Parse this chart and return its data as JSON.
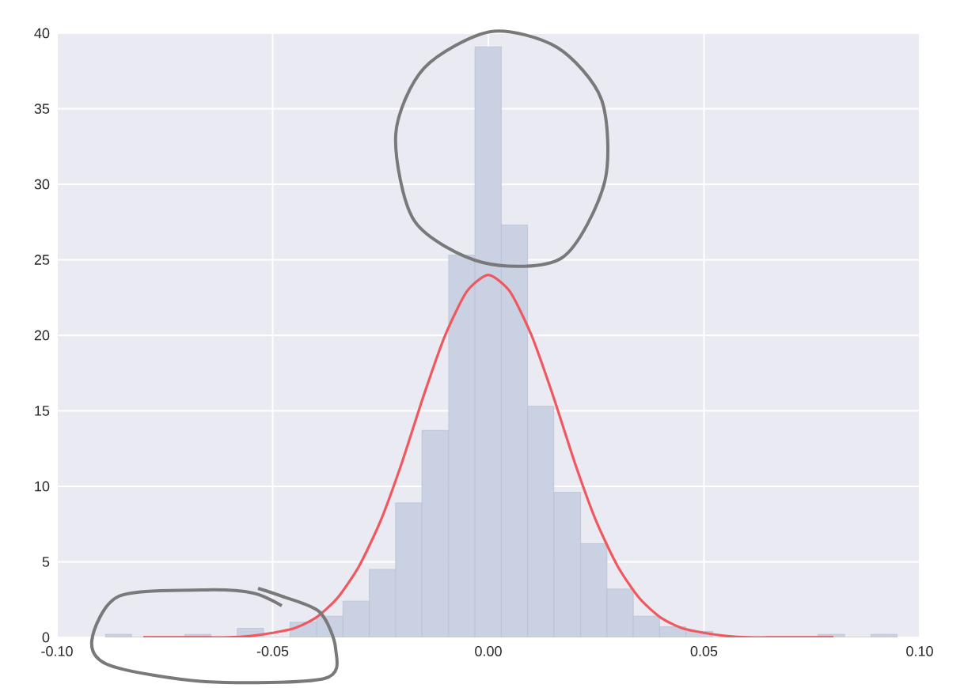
{
  "chart_data": {
    "type": "histogram",
    "series": [
      {
        "color": "#c9d1e3",
        "bins": [
          -0.0888,
          -0.0827,
          -0.0704,
          -0.0643,
          -0.0582,
          -0.0521,
          -0.046,
          -0.0398,
          -0.0337,
          -0.0276,
          -0.0215,
          -0.0154,
          -0.0092,
          -0.0031,
          0.003,
          0.0091,
          0.0152,
          0.0214,
          0.0275,
          0.0336,
          0.0397,
          0.0458,
          0.052,
          0.0764,
          0.0826,
          0.0887,
          0.0948
        ],
        "values": [
          0.2,
          0,
          0.2,
          0,
          0.6,
          0,
          1.0,
          1.4,
          2.4,
          4.5,
          8.9,
          13.7,
          25.3,
          39.1,
          27.3,
          15.3,
          9.6,
          6.2,
          3.2,
          1.4,
          0.7,
          0.4,
          0,
          0.2,
          0,
          0.2
        ]
      },
      {
        "type": "line",
        "color": "#f0585f",
        "x": [
          -0.08,
          -0.075,
          -0.07,
          -0.065,
          -0.06,
          -0.055,
          -0.05,
          -0.045,
          -0.04,
          -0.035,
          -0.03,
          -0.025,
          -0.02,
          -0.015,
          -0.01,
          -0.005,
          0,
          0.005,
          0.01,
          0.015,
          0.02,
          0.025,
          0.03,
          0.035,
          0.04,
          0.045,
          0.05,
          0.055,
          0.06,
          0.065,
          0.07,
          0.075,
          0.08
        ],
        "values": [
          0,
          0,
          0,
          0,
          0,
          0.1,
          0.3,
          0.6,
          1.3,
          2.6,
          4.7,
          7.7,
          11.6,
          16.0,
          20.0,
          22.9,
          24,
          22.9,
          20.0,
          16.0,
          11.6,
          7.7,
          4.7,
          2.6,
          1.3,
          0.6,
          0.3,
          0.1,
          0,
          0,
          0,
          0,
          0
        ]
      }
    ],
    "xlim": [
      -0.1,
      0.1
    ],
    "ylim": [
      0,
      40
    ],
    "xticks": [
      {
        "value": -0.1,
        "label": "-0.10"
      },
      {
        "value": -0.05,
        "label": "-0.05"
      },
      {
        "value": 0,
        "label": "0.00"
      },
      {
        "value": 0.05,
        "label": "0.05"
      },
      {
        "value": 0.1,
        "label": "0.10"
      }
    ],
    "yticks": [
      0,
      5,
      10,
      15,
      20,
      25,
      30,
      35,
      40
    ],
    "grid": true
  }
}
